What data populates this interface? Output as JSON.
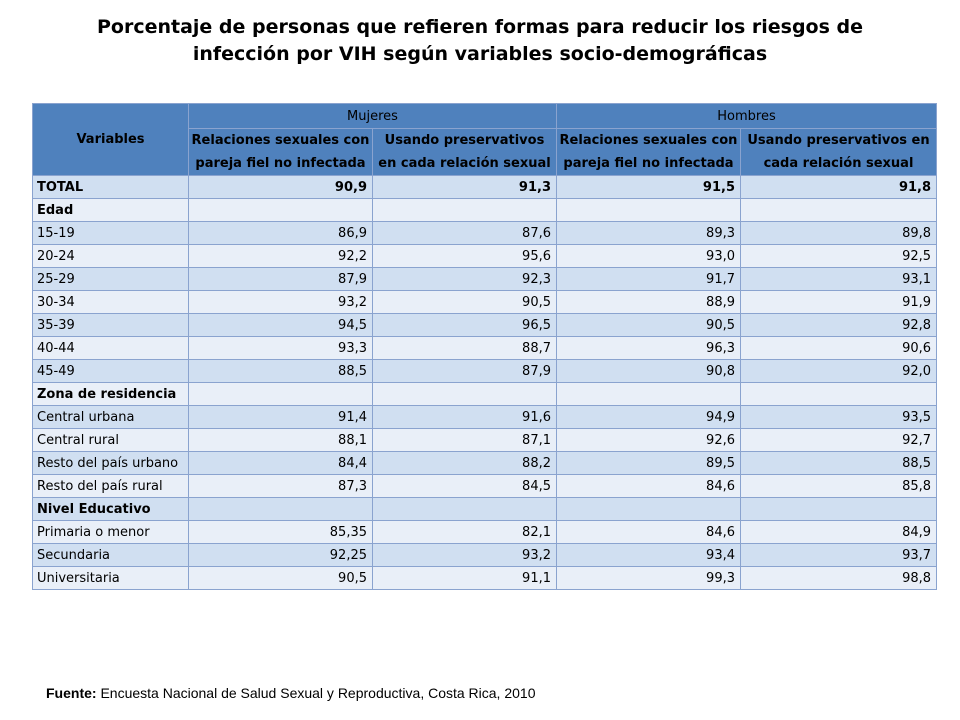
{
  "title": {
    "line1": "Porcentaje de personas que refieren formas para reducir los riesgos de",
    "line2": "infección por VIH según variables socio-demográficas"
  },
  "table": {
    "header": {
      "variables": "Variables",
      "group_women": "Mujeres",
      "group_men": "Hombres",
      "col1": "Relaciones sexuales con pareja fiel no infectada",
      "col2": "Usando preservativos en cada relación sexual",
      "col3": "Relaciones sexuales con pareja fiel no infectada",
      "col4": "Usando preservativos en cada relación sexual"
    },
    "rows": [
      {
        "label": "TOTAL",
        "values": [
          "90,9",
          "91,3",
          "91,5",
          "91,8"
        ],
        "bold": true
      },
      {
        "label": "Edad",
        "values": [
          "",
          "",
          "",
          ""
        ],
        "bold": true
      },
      {
        "label": "15-19",
        "values": [
          "86,9",
          "87,6",
          "89,3",
          "89,8"
        ],
        "bold": false
      },
      {
        "label": "20-24",
        "values": [
          "92,2",
          "95,6",
          "93,0",
          "92,5"
        ],
        "bold": false
      },
      {
        "label": "25-29",
        "values": [
          "87,9",
          "92,3",
          "91,7",
          "93,1"
        ],
        "bold": false
      },
      {
        "label": "30-34",
        "values": [
          "93,2",
          "90,5",
          "88,9",
          "91,9"
        ],
        "bold": false
      },
      {
        "label": "35-39",
        "values": [
          "94,5",
          "96,5",
          "90,5",
          "92,8"
        ],
        "bold": false
      },
      {
        "label": "40-44",
        "values": [
          "93,3",
          "88,7",
          "96,3",
          "90,6"
        ],
        "bold": false
      },
      {
        "label": "45-49",
        "values": [
          "88,5",
          "87,9",
          "90,8",
          "92,0"
        ],
        "bold": false
      },
      {
        "label": "Zona de residencia",
        "values": [
          "",
          "",
          "",
          ""
        ],
        "bold": true
      },
      {
        "label": "Central urbana",
        "values": [
          "91,4",
          "91,6",
          "94,9",
          "93,5"
        ],
        "bold": false
      },
      {
        "label": "Central rural",
        "values": [
          "88,1",
          "87,1",
          "92,6",
          "92,7"
        ],
        "bold": false
      },
      {
        "label": "Resto del país urbano",
        "values": [
          "84,4",
          "88,2",
          "89,5",
          "88,5"
        ],
        "bold": false
      },
      {
        "label": "Resto del país rural",
        "values": [
          "87,3",
          "84,5",
          "84,6",
          "85,8"
        ],
        "bold": false
      },
      {
        "label": "Nivel Educativo",
        "values": [
          "",
          "",
          "",
          ""
        ],
        "bold": true
      },
      {
        "label": "Primaria  o menor",
        "values": [
          "85,35",
          "82,1",
          "84,6",
          "84,9"
        ],
        "bold": false
      },
      {
        "label": "Secundaria",
        "values": [
          "92,25",
          "93,2",
          "93,4",
          "93,7"
        ],
        "bold": false
      },
      {
        "label": "Universitaria",
        "values": [
          "90,5",
          "91,1",
          "99,3",
          "98,8"
        ],
        "bold": false
      }
    ]
  },
  "source": {
    "label": "Fuente:",
    "text": " Encuesta Nacional de Salud Sexual y Reproductiva, Costa Rica, 2010"
  },
  "colors": {
    "header_bg": "#4f81bd",
    "row_odd": "#d0dff1",
    "row_even": "#e9eff8",
    "border": "#8aa3cf"
  }
}
